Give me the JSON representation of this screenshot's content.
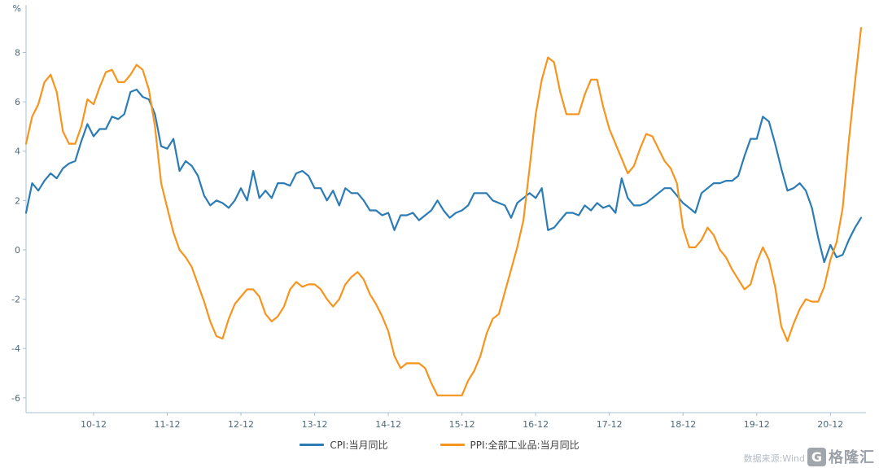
{
  "chart": {
    "unit_label": "%",
    "legend": {
      "cpi_label": "CPI:当月同比",
      "ppi_label": "PPI:全部工业品:当月同比"
    },
    "source_text": "数据来源:Wind",
    "watermark_letter": "G",
    "watermark_text": "格隆汇",
    "colors": {
      "cpi": "#2b7cb5",
      "ppi": "#f7941e",
      "axis": "#a7c1d1",
      "tick_text": "#4e6a7c",
      "legend_text": "#404040",
      "source_text": "#b4bcc4",
      "watermark": "#9298a0"
    }
  },
  "chart_data": {
    "type": "line",
    "title": "",
    "xlabel": "",
    "ylabel": "%",
    "ylim": [
      -6.6,
      9.6
    ],
    "grid": false,
    "legend_position": "bottom",
    "y_ticks": [
      8,
      6,
      4,
      2,
      0,
      -2,
      -4,
      -6
    ],
    "x_tick_labels": [
      "10-12",
      "11-12",
      "12-12",
      "13-12",
      "14-12",
      "15-12",
      "16-12",
      "17-12",
      "18-12",
      "19-12",
      "20-12"
    ],
    "x": [
      "2010-01",
      "2010-02",
      "2010-03",
      "2010-04",
      "2010-05",
      "2010-06",
      "2010-07",
      "2010-08",
      "2010-09",
      "2010-10",
      "2010-11",
      "2010-12",
      "2011-01",
      "2011-02",
      "2011-03",
      "2011-04",
      "2011-05",
      "2011-06",
      "2011-07",
      "2011-08",
      "2011-09",
      "2011-10",
      "2011-11",
      "2011-12",
      "2012-01",
      "2012-02",
      "2012-03",
      "2012-04",
      "2012-05",
      "2012-06",
      "2012-07",
      "2012-08",
      "2012-09",
      "2012-10",
      "2012-11",
      "2012-12",
      "2013-01",
      "2013-02",
      "2013-03",
      "2013-04",
      "2013-05",
      "2013-06",
      "2013-07",
      "2013-08",
      "2013-09",
      "2013-10",
      "2013-11",
      "2013-12",
      "2014-01",
      "2014-02",
      "2014-03",
      "2014-04",
      "2014-05",
      "2014-06",
      "2014-07",
      "2014-08",
      "2014-09",
      "2014-10",
      "2014-11",
      "2014-12",
      "2015-01",
      "2015-02",
      "2015-03",
      "2015-04",
      "2015-05",
      "2015-06",
      "2015-07",
      "2015-08",
      "2015-09",
      "2015-10",
      "2015-11",
      "2015-12",
      "2016-01",
      "2016-02",
      "2016-03",
      "2016-04",
      "2016-05",
      "2016-06",
      "2016-07",
      "2016-08",
      "2016-09",
      "2016-10",
      "2016-11",
      "2016-12",
      "2017-01",
      "2017-02",
      "2017-03",
      "2017-04",
      "2017-05",
      "2017-06",
      "2017-07",
      "2017-08",
      "2017-09",
      "2017-10",
      "2017-11",
      "2017-12",
      "2018-01",
      "2018-02",
      "2018-03",
      "2018-04",
      "2018-05",
      "2018-06",
      "2018-07",
      "2018-08",
      "2018-09",
      "2018-10",
      "2018-11",
      "2018-12",
      "2019-01",
      "2019-02",
      "2019-03",
      "2019-04",
      "2019-05",
      "2019-06",
      "2019-07",
      "2019-08",
      "2019-09",
      "2019-10",
      "2019-11",
      "2019-12",
      "2020-01",
      "2020-02",
      "2020-03",
      "2020-04",
      "2020-05",
      "2020-06",
      "2020-07",
      "2020-08",
      "2020-09",
      "2020-10",
      "2020-11",
      "2020-12",
      "2021-01",
      "2021-02",
      "2021-03",
      "2021-04",
      "2021-05"
    ],
    "series": [
      {
        "name": "CPI:当月同比",
        "color": "#2b7cb5",
        "values": [
          1.5,
          2.7,
          2.4,
          2.8,
          3.1,
          2.9,
          3.3,
          3.5,
          3.6,
          4.4,
          5.1,
          4.6,
          4.9,
          4.9,
          5.4,
          5.3,
          5.5,
          6.4,
          6.5,
          6.2,
          6.1,
          5.5,
          4.2,
          4.1,
          4.5,
          3.2,
          3.6,
          3.4,
          3.0,
          2.2,
          1.8,
          2.0,
          1.9,
          1.7,
          2.0,
          2.5,
          2.0,
          3.2,
          2.1,
          2.4,
          2.1,
          2.7,
          2.7,
          2.6,
          3.1,
          3.2,
          3.0,
          2.5,
          2.5,
          2.0,
          2.4,
          1.8,
          2.5,
          2.3,
          2.3,
          2.0,
          1.6,
          1.6,
          1.4,
          1.5,
          0.8,
          1.4,
          1.4,
          1.5,
          1.2,
          1.4,
          1.6,
          2.0,
          1.6,
          1.3,
          1.5,
          1.6,
          1.8,
          2.3,
          2.3,
          2.3,
          2.0,
          1.9,
          1.8,
          1.3,
          1.9,
          2.1,
          2.3,
          2.1,
          2.5,
          0.8,
          0.9,
          1.2,
          1.5,
          1.5,
          1.4,
          1.8,
          1.6,
          1.9,
          1.7,
          1.8,
          1.5,
          2.9,
          2.1,
          1.8,
          1.8,
          1.9,
          2.1,
          2.3,
          2.5,
          2.5,
          2.2,
          1.9,
          1.7,
          1.5,
          2.3,
          2.5,
          2.7,
          2.7,
          2.8,
          2.8,
          3.0,
          3.8,
          4.5,
          4.5,
          5.4,
          5.2,
          4.3,
          3.3,
          2.4,
          2.5,
          2.7,
          2.4,
          1.7,
          0.5,
          -0.5,
          0.2,
          -0.3,
          -0.2,
          0.4,
          0.9,
          1.3
        ]
      },
      {
        "name": "PPI:全部工业品:当月同比",
        "color": "#f7941e",
        "values": [
          4.3,
          5.4,
          5.9,
          6.8,
          7.1,
          6.4,
          4.8,
          4.3,
          4.3,
          5.0,
          6.1,
          5.9,
          6.6,
          7.2,
          7.3,
          6.8,
          6.8,
          7.1,
          7.5,
          7.3,
          6.5,
          5.0,
          2.7,
          1.7,
          0.7,
          0.0,
          -0.3,
          -0.7,
          -1.4,
          -2.1,
          -2.9,
          -3.5,
          -3.6,
          -2.8,
          -2.2,
          -1.9,
          -1.6,
          -1.6,
          -1.9,
          -2.6,
          -2.9,
          -2.7,
          -2.3,
          -1.6,
          -1.3,
          -1.5,
          -1.4,
          -1.4,
          -1.6,
          -2.0,
          -2.3,
          -2.0,
          -1.4,
          -1.1,
          -0.9,
          -1.2,
          -1.8,
          -2.2,
          -2.7,
          -3.3,
          -4.3,
          -4.8,
          -4.6,
          -4.6,
          -4.6,
          -4.8,
          -5.4,
          -5.9,
          -5.9,
          -5.9,
          -5.9,
          -5.9,
          -5.3,
          -4.9,
          -4.3,
          -3.4,
          -2.8,
          -2.6,
          -1.7,
          -0.8,
          0.1,
          1.2,
          3.3,
          5.5,
          6.9,
          7.8,
          7.6,
          6.4,
          5.5,
          5.5,
          5.5,
          6.3,
          6.9,
          6.9,
          5.8,
          4.9,
          4.3,
          3.7,
          3.1,
          3.4,
          4.1,
          4.7,
          4.6,
          4.1,
          3.6,
          3.3,
          2.7,
          0.9,
          0.1,
          0.1,
          0.4,
          0.9,
          0.6,
          0.0,
          -0.3,
          -0.8,
          -1.2,
          -1.6,
          -1.4,
          -0.5,
          0.1,
          -0.4,
          -1.5,
          -3.1,
          -3.7,
          -3.0,
          -2.4,
          -2.0,
          -2.1,
          -2.1,
          -1.5,
          -0.4,
          0.3,
          1.7,
          4.4,
          6.8,
          9.0
        ]
      }
    ]
  }
}
